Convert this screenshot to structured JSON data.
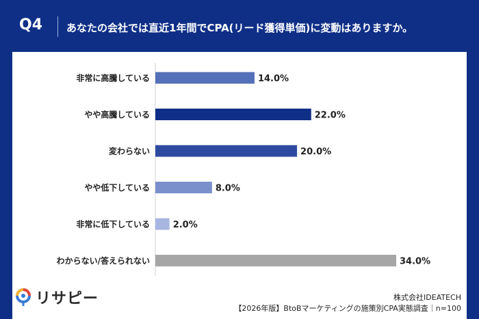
{
  "header": {
    "question_number": "Q4",
    "question_text": "あなたの会社では直近1年間でCPA(リード獲得単価)に変動はありますか。"
  },
  "chart_data": {
    "type": "bar",
    "orientation": "horizontal",
    "categories": [
      "非常に高騰している",
      "やや高騰している",
      "変わらない",
      "やや低下している",
      "非常に低下している",
      "わからない/答えられない"
    ],
    "values": [
      14.0,
      22.0,
      20.0,
      8.0,
      2.0,
      34.0
    ],
    "value_labels": [
      "14.0%",
      "22.0%",
      "20.0%",
      "8.0%",
      "2.0%",
      "34.0%"
    ],
    "bar_colors": [
      "#5470b8",
      "#0f2f87",
      "#2e4aa0",
      "#7a90cc",
      "#a7b6e0",
      "#a6a6a6"
    ],
    "xlim": [
      0,
      34
    ],
    "grid": false
  },
  "footer": {
    "logo_text": "リサピー",
    "company": "株式会社IDEATECH",
    "source": "【2026年版】BtoBマーケティングの施策別CPA実態調査｜n=100"
  }
}
